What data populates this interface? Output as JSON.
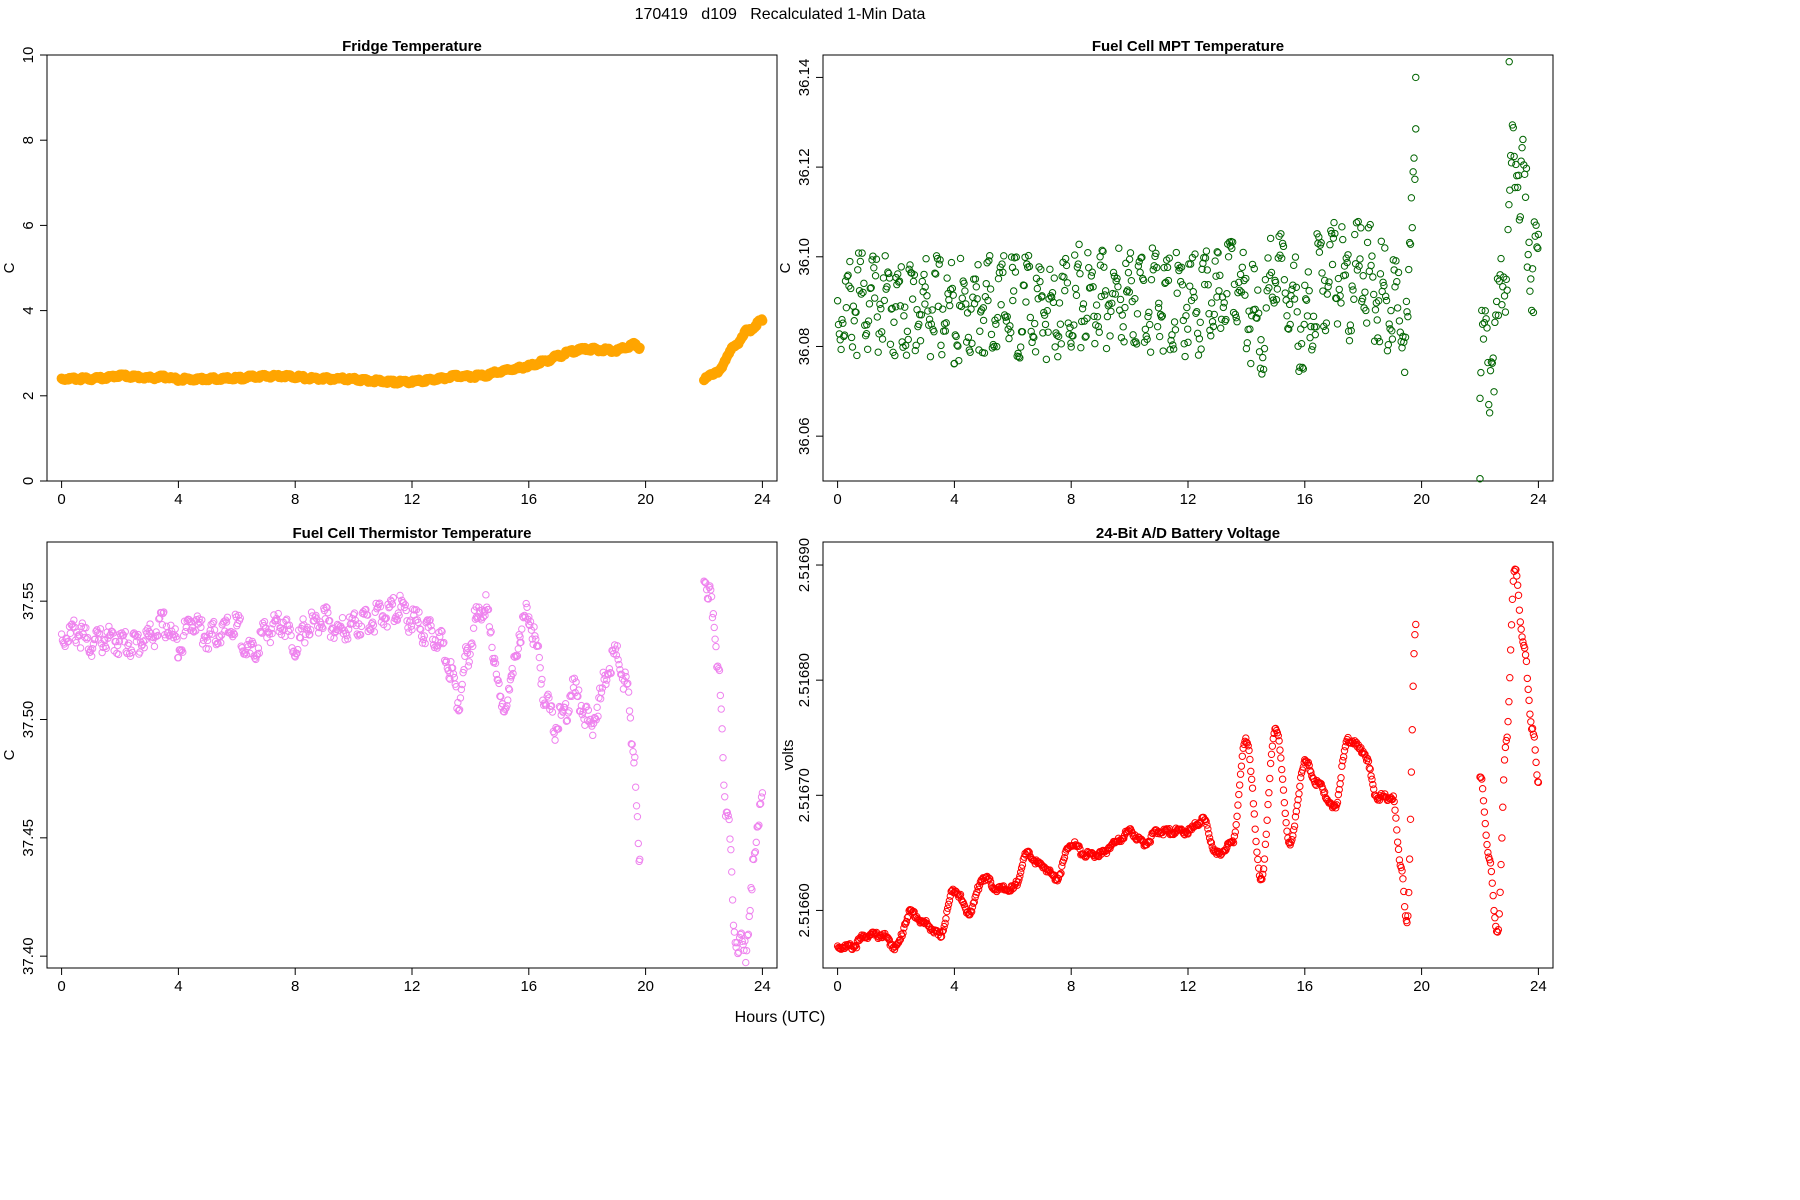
{
  "header": {
    "title": "170419   d109   Recalculated 1-Min Data",
    "xlabel": "Hours (UTC)"
  },
  "chart_data": [
    {
      "type": "scatter",
      "title": "Fridge Temperature",
      "xlabel": "Hours (UTC)",
      "ylabel": "C",
      "color": "#FFA500",
      "marker": "filled-circle",
      "xlim": [
        -0.5,
        24.5
      ],
      "ylim": [
        0,
        10
      ],
      "x_ticks": [
        0,
        4,
        8,
        12,
        16,
        20,
        24
      ],
      "y_ticks": [
        0,
        2,
        4,
        6,
        8,
        10
      ],
      "y_tick_labels": [
        "0",
        "2",
        "4",
        "6",
        "8",
        "10"
      ],
      "x": [
        0,
        0.5,
        1,
        1.5,
        2,
        2.5,
        3,
        3.5,
        4,
        4.5,
        5,
        5.5,
        6,
        6.5,
        7,
        7.5,
        8,
        8.5,
        9,
        9.5,
        10,
        10.5,
        11,
        11.5,
        12,
        12.5,
        13,
        13.5,
        14,
        14.5,
        15,
        15.5,
        16,
        16.5,
        17,
        17.5,
        18,
        18.5,
        19,
        19.3,
        19.6,
        19.8,
        22,
        22.5,
        23,
        23.5,
        24
      ],
      "y": [
        2.42,
        2.42,
        2.42,
        2.44,
        2.5,
        2.47,
        2.44,
        2.46,
        2.41,
        2.41,
        2.42,
        2.42,
        2.43,
        2.46,
        2.48,
        2.49,
        2.47,
        2.43,
        2.42,
        2.42,
        2.41,
        2.38,
        2.36,
        2.34,
        2.35,
        2.38,
        2.42,
        2.5,
        2.47,
        2.5,
        2.58,
        2.65,
        2.72,
        2.82,
        2.95,
        3.07,
        3.12,
        3.1,
        3.08,
        3.15,
        3.23,
        3.15,
        2.42,
        2.6,
        3.15,
        3.55,
        3.78
      ],
      "segments": [
        [
          0,
          19.8
        ],
        [
          22,
          24
        ]
      ]
    },
    {
      "type": "scatter",
      "title": "Fuel Cell MPT Temperature",
      "xlabel": "Hours (UTC)",
      "ylabel": "C",
      "color": "#006400",
      "marker": "open-circle",
      "xlim": [
        -0.5,
        24.5
      ],
      "ylim": [
        36.05,
        36.145
      ],
      "x_ticks": [
        0,
        4,
        8,
        12,
        16,
        20,
        24
      ],
      "y_ticks": [
        36.06,
        36.08,
        36.1,
        36.12,
        36.14
      ],
      "y_tick_labels": [
        "36.06",
        "36.08",
        "36.10",
        "36.12",
        "36.14"
      ],
      "x": [
        0,
        1,
        2,
        3,
        4,
        5,
        6,
        7,
        8,
        9,
        10,
        11,
        12,
        13,
        13.5,
        14,
        14.5,
        15,
        15.5,
        16,
        16.5,
        17,
        17.5,
        18,
        18.5,
        19,
        19.5,
        19.8,
        22,
        22.3,
        22.6,
        22.9,
        23.2,
        23.5,
        23.8,
        24
      ],
      "y": [
        36.094,
        36.096,
        36.095,
        36.095,
        36.094,
        36.095,
        36.095,
        36.094,
        36.097,
        36.096,
        36.097,
        36.096,
        36.095,
        36.096,
        36.105,
        36.095,
        36.09,
        36.102,
        36.097,
        36.09,
        36.1,
        36.103,
        36.099,
        36.104,
        36.098,
        36.096,
        36.09,
        36.135,
        36.085,
        36.082,
        36.09,
        36.105,
        36.13,
        36.12,
        36.105,
        36.1
      ],
      "outliers": [
        {
          "x": 22,
          "y": 36.0505
        },
        {
          "x": 23,
          "y": 36.1435
        },
        {
          "x": 19.8,
          "y": 36.14
        }
      ]
    },
    {
      "type": "scatter",
      "title": "Fuel Cell Thermistor Temperature",
      "xlabel": "Hours (UTC)",
      "ylabel": "C",
      "color": "#EE82EE",
      "marker": "open-circle",
      "xlim": [
        -0.5,
        24.5
      ],
      "ylim": [
        37.395,
        37.575
      ],
      "x_ticks": [
        0,
        4,
        8,
        12,
        16,
        20,
        24
      ],
      "y_ticks": [
        37.4,
        37.45,
        37.5,
        37.55
      ],
      "y_tick_labels": [
        "37.40",
        "37.45",
        "37.50",
        "37.55"
      ],
      "x": [
        0,
        0.5,
        1,
        1.5,
        2,
        2.5,
        3,
        3.5,
        4,
        4.5,
        5,
        5.5,
        6,
        6.5,
        7,
        7.5,
        8,
        8.5,
        9,
        9.5,
        10,
        10.5,
        11,
        11.5,
        12,
        12.5,
        13,
        13.3,
        13.6,
        13.9,
        14.2,
        14.5,
        14.8,
        15.1,
        15.4,
        15.7,
        16,
        16.3,
        16.6,
        16.9,
        17.2,
        17.5,
        17.8,
        18.1,
        18.4,
        18.7,
        19,
        19.3,
        19.6,
        19.8,
        22,
        22.2,
        22.5,
        22.8,
        23.1,
        23.4,
        23.7,
        24
      ],
      "y": [
        37.538,
        37.54,
        37.535,
        37.537,
        37.536,
        37.535,
        37.538,
        37.543,
        37.535,
        37.545,
        37.538,
        37.54,
        37.542,
        37.53,
        37.54,
        37.545,
        37.535,
        37.543,
        37.545,
        37.54,
        37.543,
        37.545,
        37.547,
        37.55,
        37.545,
        37.54,
        37.535,
        37.525,
        37.512,
        37.53,
        37.545,
        37.552,
        37.53,
        37.505,
        37.52,
        37.54,
        37.548,
        37.53,
        37.51,
        37.5,
        37.505,
        37.515,
        37.51,
        37.5,
        37.51,
        37.525,
        37.53,
        37.52,
        37.49,
        37.44,
        37.556,
        37.56,
        37.52,
        37.46,
        37.41,
        37.405,
        37.44,
        37.475
      ]
    },
    {
      "type": "scatter",
      "title": "24-Bit A/D Battery Voltage",
      "xlabel": "Hours (UTC)",
      "ylabel": "volts",
      "color": "#FF0000",
      "marker": "open-circle",
      "xlim": [
        -0.5,
        24.5
      ],
      "ylim": [
        2.51655,
        2.51692
      ],
      "x_ticks": [
        0,
        4,
        8,
        12,
        16,
        20,
        24
      ],
      "y_ticks": [
        2.5166,
        2.5167,
        2.5168,
        2.5169
      ],
      "y_tick_labels": [
        "2.51660",
        "2.51670",
        "2.51680",
        "2.51690"
      ],
      "x": [
        0,
        0.5,
        1,
        1.5,
        2,
        2.5,
        3,
        3.5,
        4,
        4.5,
        5,
        5.5,
        6,
        6.5,
        7,
        7.5,
        8,
        8.5,
        9,
        9.5,
        10,
        10.5,
        11,
        11.5,
        12,
        12.5,
        13,
        13.5,
        14,
        14.5,
        15,
        15.5,
        16,
        16.5,
        17,
        17.5,
        18,
        18.5,
        19,
        19.3,
        19.5,
        19.8,
        22,
        22.3,
        22.6,
        22.9,
        23.2,
        23.5,
        23.8,
        24
      ],
      "y": [
        2.51657,
        2.51657,
        2.51658,
        2.51658,
        2.51657,
        2.5166,
        2.51659,
        2.51658,
        2.51662,
        2.5166,
        2.51663,
        2.51662,
        2.51662,
        2.51665,
        2.51664,
        2.51663,
        2.51666,
        2.51665,
        2.51665,
        2.51666,
        2.51667,
        2.51666,
        2.51667,
        2.51667,
        2.51667,
        2.51668,
        2.51665,
        2.51666,
        2.51675,
        2.51663,
        2.51676,
        2.51666,
        2.51673,
        2.51671,
        2.51669,
        2.51675,
        2.51674,
        2.5167,
        2.5167,
        2.51664,
        2.51659,
        2.51685,
        2.51672,
        2.51665,
        2.51658,
        2.51675,
        2.5169,
        2.51683,
        2.51676,
        2.51671
      ]
    }
  ]
}
